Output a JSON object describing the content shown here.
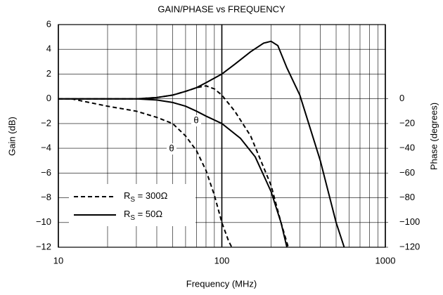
{
  "chart_data": {
    "type": "line",
    "title": "GAIN/PHASE vs FREQUENCY",
    "xlabel": "Frequency (MHz)",
    "ylabel": "Gain (dB)",
    "y2label": "Phase (degrees)",
    "xscale": "log",
    "xlim": [
      10,
      1000
    ],
    "xticks": [
      10,
      100,
      1000
    ],
    "ylim": [
      -12,
      6
    ],
    "yticks": [
      {
        "value": -12,
        "label": "−12"
      },
      {
        "value": -10,
        "label": "−10"
      },
      {
        "value": -8,
        "label": "−8"
      },
      {
        "value": -6,
        "label": "−6"
      },
      {
        "value": -4,
        "label": "−4"
      },
      {
        "value": -2,
        "label": "−2"
      },
      0,
      2,
      4,
      6
    ],
    "y2lim": [
      -120,
      60
    ],
    "y2ticks": [
      0,
      {
        "value": -20,
        "label": "−20"
      },
      {
        "value": -40,
        "label": "−40"
      },
      {
        "value": -60,
        "label": "−60"
      },
      {
        "value": -80,
        "label": "−80"
      },
      {
        "value": -100,
        "label": "−100"
      },
      {
        "value": -120,
        "label": "−120"
      }
    ],
    "grid": true,
    "legend": "lower left",
    "annotations": [
      "θ",
      "θ"
    ],
    "series": [
      {
        "name": "RS = 300Ω",
        "color": "#000000",
        "dash": true,
        "x": [
          10,
          20,
          30,
          40,
          50,
          60,
          70,
          80,
          90,
          100,
          120,
          150,
          200,
          230,
          255
        ],
        "values": [
          0,
          0,
          0,
          0.1,
          0.3,
          0.6,
          0.9,
          1.05,
          0.8,
          0.3,
          -1,
          -3,
          -7,
          -10,
          -12
        ]
      },
      {
        "name": "RS = 50Ω",
        "color": "#000000",
        "dash": false,
        "x": [
          10,
          20,
          30,
          40,
          50,
          60,
          70,
          80,
          100,
          120,
          150,
          180,
          200,
          220,
          250,
          300,
          400,
          500,
          560
        ],
        "values": [
          0,
          0,
          0,
          0.1,
          0.3,
          0.6,
          0.9,
          1.3,
          2,
          2.8,
          3.8,
          4.5,
          4.65,
          4.3,
          2.5,
          0.3,
          -5,
          -10,
          -12
        ]
      },
      {
        "color": "#000000",
        "dash": true,
        "axis": "y2",
        "x": [
          12,
          20,
          30,
          40,
          50,
          60,
          70,
          80,
          90,
          100,
          110,
          115
        ],
        "values": [
          0,
          -6,
          -10,
          -15,
          -20,
          -30,
          -42,
          -58,
          -78,
          -100,
          -115,
          -120
        ]
      },
      {
        "color": "#000000",
        "dash": false,
        "axis": "y2",
        "x": [
          10,
          30,
          40,
          50,
          60,
          70,
          80,
          100,
          130,
          160,
          200,
          230,
          250
        ],
        "values": [
          0,
          0,
          -1,
          -3,
          -6,
          -10,
          -14,
          -20,
          -32,
          -47,
          -75,
          -100,
          -120
        ]
      }
    ]
  }
}
